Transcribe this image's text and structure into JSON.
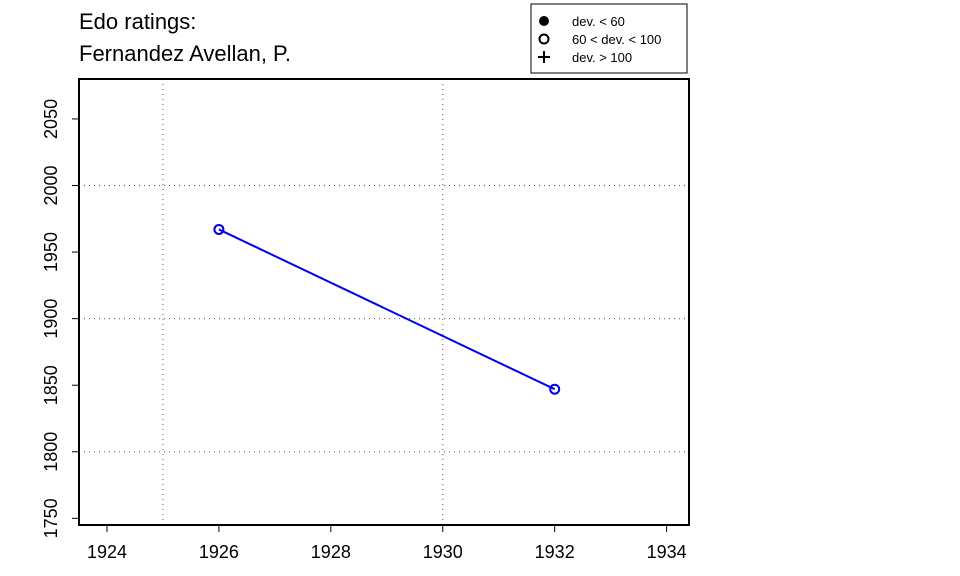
{
  "chart_data": {
    "type": "scatter",
    "title_lines": [
      "Edo ratings:",
      "Fernandez Avellan, P."
    ],
    "xlabel": "",
    "ylabel": "",
    "xlim": [
      1923.5,
      1934.4
    ],
    "ylim": [
      1745,
      2080
    ],
    "x_ticks": [
      1924,
      1926,
      1928,
      1930,
      1932,
      1934
    ],
    "x_tick_labels": [
      "1924",
      "1926",
      "1928",
      "1930",
      "1932",
      "1934"
    ],
    "y_ticks": [
      1750,
      1800,
      1850,
      1900,
      1950,
      2000,
      2050
    ],
    "y_tick_labels": [
      "1750",
      "1800",
      "1850",
      "1900",
      "1950",
      "2000",
      "2050"
    ],
    "x_grid": [
      1925,
      1930
    ],
    "y_grid": [
      1800,
      1900,
      2000
    ],
    "grid": true,
    "legend_position": "top-right",
    "legend": [
      {
        "label": "dev. < 60",
        "marker": "filled-circle"
      },
      {
        "label": "60 < dev. < 100",
        "marker": "open-circle"
      },
      {
        "label": "dev. > 100",
        "marker": "plus"
      }
    ],
    "series": [
      {
        "color": "#0000ee",
        "marker": "open-circle",
        "points": [
          {
            "x": 1926,
            "y": 1967
          },
          {
            "x": 1932,
            "y": 1847
          }
        ]
      }
    ]
  }
}
